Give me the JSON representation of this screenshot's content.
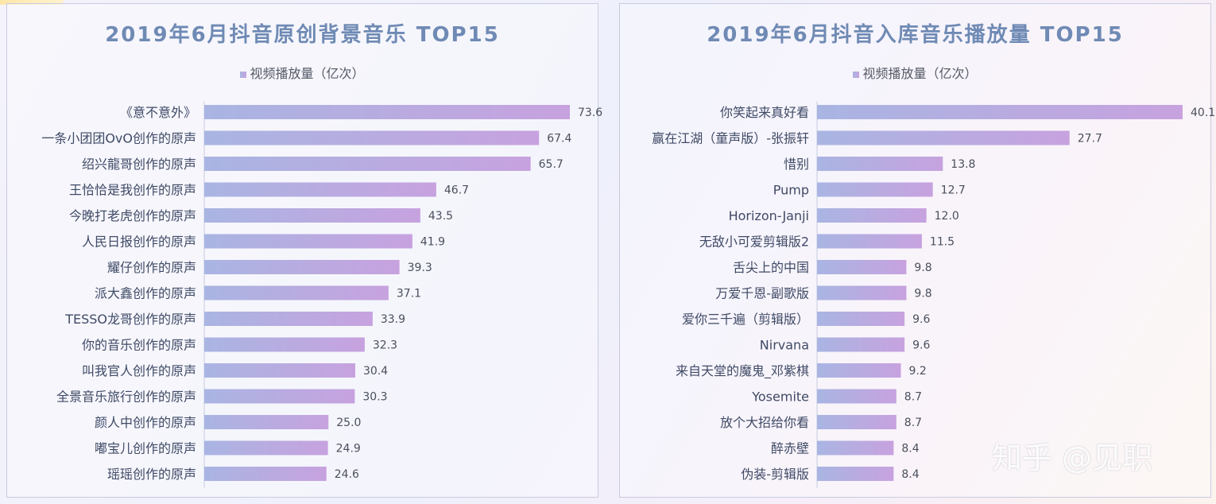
{
  "chart_data": [
    {
      "type": "bar",
      "orientation": "horizontal",
      "title": "2019年6月抖音原创背景音乐 TOP15",
      "legend": "视频播放量（亿次）",
      "legend_position": "top",
      "categories": [
        "《意不意外》",
        "一条小团团OvO创作的原声",
        "绍兴龍哥创作的原声",
        "王恰恰是我创作的原声",
        "今晚打老虎创作的原声",
        "人民日报创作的原声",
        "耀仔创作的原声",
        "派大鑫创作的原声",
        "TESSO龙哥创作的原声",
        "你的音乐创作的原声",
        "叫我官人创作的原声",
        "全景音乐旅行创作的原声",
        "颜人中创作的原声",
        "嘟宝儿创作的原声",
        "瑶瑶创作的原声"
      ],
      "values": [
        73.6,
        67.4,
        65.7,
        46.7,
        43.5,
        41.9,
        39.3,
        37.1,
        33.9,
        32.3,
        30.4,
        30.3,
        25.0,
        24.9,
        24.6
      ],
      "value_labels": [
        "73.6",
        "67.4",
        "65.7",
        "46.7",
        "43.5",
        "41.9",
        "39.3",
        "37.1",
        "33.9",
        "32.3",
        "30.4",
        "30.3",
        "25.0",
        "24.9",
        "24.6"
      ],
      "xlim": [
        0,
        73.6
      ],
      "grid": false
    },
    {
      "type": "bar",
      "orientation": "horizontal",
      "title": "2019年6月抖音入库音乐播放量 TOP15",
      "legend": "视频播放量（亿次）",
      "legend_position": "top",
      "categories": [
        "你笑起来真好看",
        "赢在江湖（童声版）-张振轩",
        "惜别",
        "Pump",
        "Horizon-Janji",
        "无敌小可爱剪辑版2",
        "舌尖上的中国",
        "万爱千恩-副歌版",
        "爱你三千遍（剪辑版）",
        "Nirvana",
        "来自天堂的魔鬼_邓紫棋",
        "Yosemite",
        "放个大招给你看",
        "醉赤壁",
        "伪装-剪辑版"
      ],
      "values": [
        40.1,
        27.7,
        13.8,
        12.7,
        12.0,
        11.5,
        9.8,
        9.8,
        9.6,
        9.6,
        9.2,
        8.7,
        8.7,
        8.4,
        8.4
      ],
      "value_labels": [
        "40.1",
        "27.7",
        "13.8",
        "12.7",
        "12.0",
        "11.5",
        "9.8",
        "9.8",
        "9.6",
        "9.6",
        "9.2",
        "8.7",
        "8.7",
        "8.4",
        "8.4"
      ],
      "xlim": [
        0,
        40.1
      ],
      "grid": false
    }
  ],
  "watermark": "知乎 @见职",
  "colors": {
    "title": "#6f8ab4",
    "bar_start": "#a9b5e2",
    "bar_end": "#c7a2df",
    "label": "#3f4a66"
  }
}
